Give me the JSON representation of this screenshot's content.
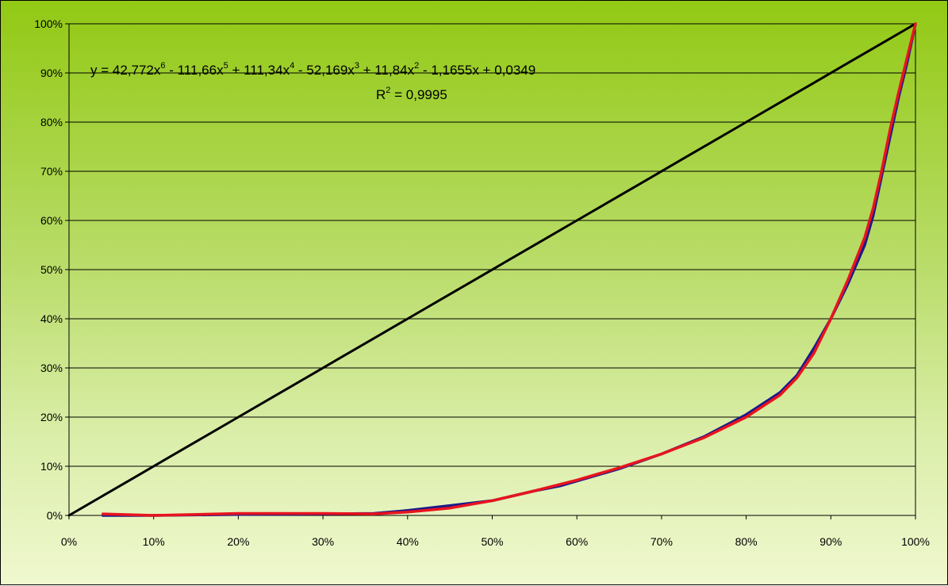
{
  "chart_data": {
    "type": "line",
    "title": "",
    "xlabel": "",
    "ylabel": "",
    "xlim": [
      0,
      1
    ],
    "ylim": [
      0,
      1
    ],
    "x_ticks": [
      "0%",
      "10%",
      "20%",
      "30%",
      "40%",
      "50%",
      "60%",
      "70%",
      "80%",
      "90%",
      "100%"
    ],
    "y_ticks": [
      "0%",
      "10%",
      "20%",
      "30%",
      "40%",
      "50%",
      "60%",
      "70%",
      "80%",
      "90%",
      "100%"
    ],
    "grid": "horizontal",
    "legend": "none",
    "series": [
      {
        "color": "#000000",
        "x": [
          0,
          0.04,
          0.08,
          0.12,
          0.16,
          0.2,
          0.24,
          0.28,
          0.32,
          0.36,
          0.4,
          0.44,
          0.48,
          0.52,
          0.56,
          0.6,
          0.64,
          0.68,
          0.72,
          0.76,
          0.8,
          0.84,
          0.88,
          0.92,
          0.96,
          1.0
        ],
        "y": [
          0,
          0.04,
          0.08,
          0.12,
          0.16,
          0.2,
          0.24,
          0.28,
          0.32,
          0.36,
          0.4,
          0.44,
          0.48,
          0.52,
          0.56,
          0.6,
          0.64,
          0.68,
          0.72,
          0.76,
          0.8,
          0.84,
          0.88,
          0.92,
          0.96,
          1.0
        ]
      },
      {
        "color": "#1a1a8c",
        "x": [
          0.04,
          0.1,
          0.2,
          0.3,
          0.36,
          0.4,
          0.45,
          0.48,
          0.5,
          0.55,
          0.58,
          0.6,
          0.65,
          0.7,
          0.75,
          0.8,
          0.84,
          0.86,
          0.88,
          0.9,
          0.92,
          0.94,
          0.95,
          0.96,
          0.97,
          0.98,
          0.99,
          1.0
        ],
        "y": [
          0.0,
          0.0,
          0.002,
          0.003,
          0.004,
          0.01,
          0.02,
          0.026,
          0.03,
          0.05,
          0.06,
          0.07,
          0.095,
          0.125,
          0.16,
          0.205,
          0.25,
          0.285,
          0.34,
          0.4,
          0.47,
          0.55,
          0.61,
          0.69,
          0.77,
          0.85,
          0.92,
          1.0
        ]
      },
      {
        "color": "#e8141e",
        "x": [
          0.04,
          0.1,
          0.2,
          0.3,
          0.36,
          0.4,
          0.45,
          0.5,
          0.55,
          0.6,
          0.65,
          0.7,
          0.75,
          0.8,
          0.84,
          0.86,
          0.88,
          0.9,
          0.92,
          0.94,
          0.95,
          0.96,
          0.97,
          0.98,
          0.99,
          1.0
        ],
        "y": [
          0.003,
          0.0,
          0.004,
          0.004,
          0.003,
          0.007,
          0.015,
          0.03,
          0.05,
          0.072,
          0.097,
          0.125,
          0.158,
          0.2,
          0.245,
          0.28,
          0.33,
          0.4,
          0.478,
          0.565,
          0.625,
          0.7,
          0.785,
          0.86,
          0.93,
          1.0
        ]
      }
    ],
    "annotations": {
      "equation": {
        "y": "y = 42,772x",
        "e6": "6",
        "t5": " - 111,66x",
        "e5": "5",
        "t4": " + 111,34x",
        "e4": "4",
        "t3": " - 52,169x",
        "e3": "3",
        "t2": " + 11,84x",
        "e2": "2",
        "t1": " - 1,1655x + 0,0349"
      },
      "r2": {
        "r": "R",
        "e": "2",
        "v": " = 0,9995"
      }
    }
  }
}
